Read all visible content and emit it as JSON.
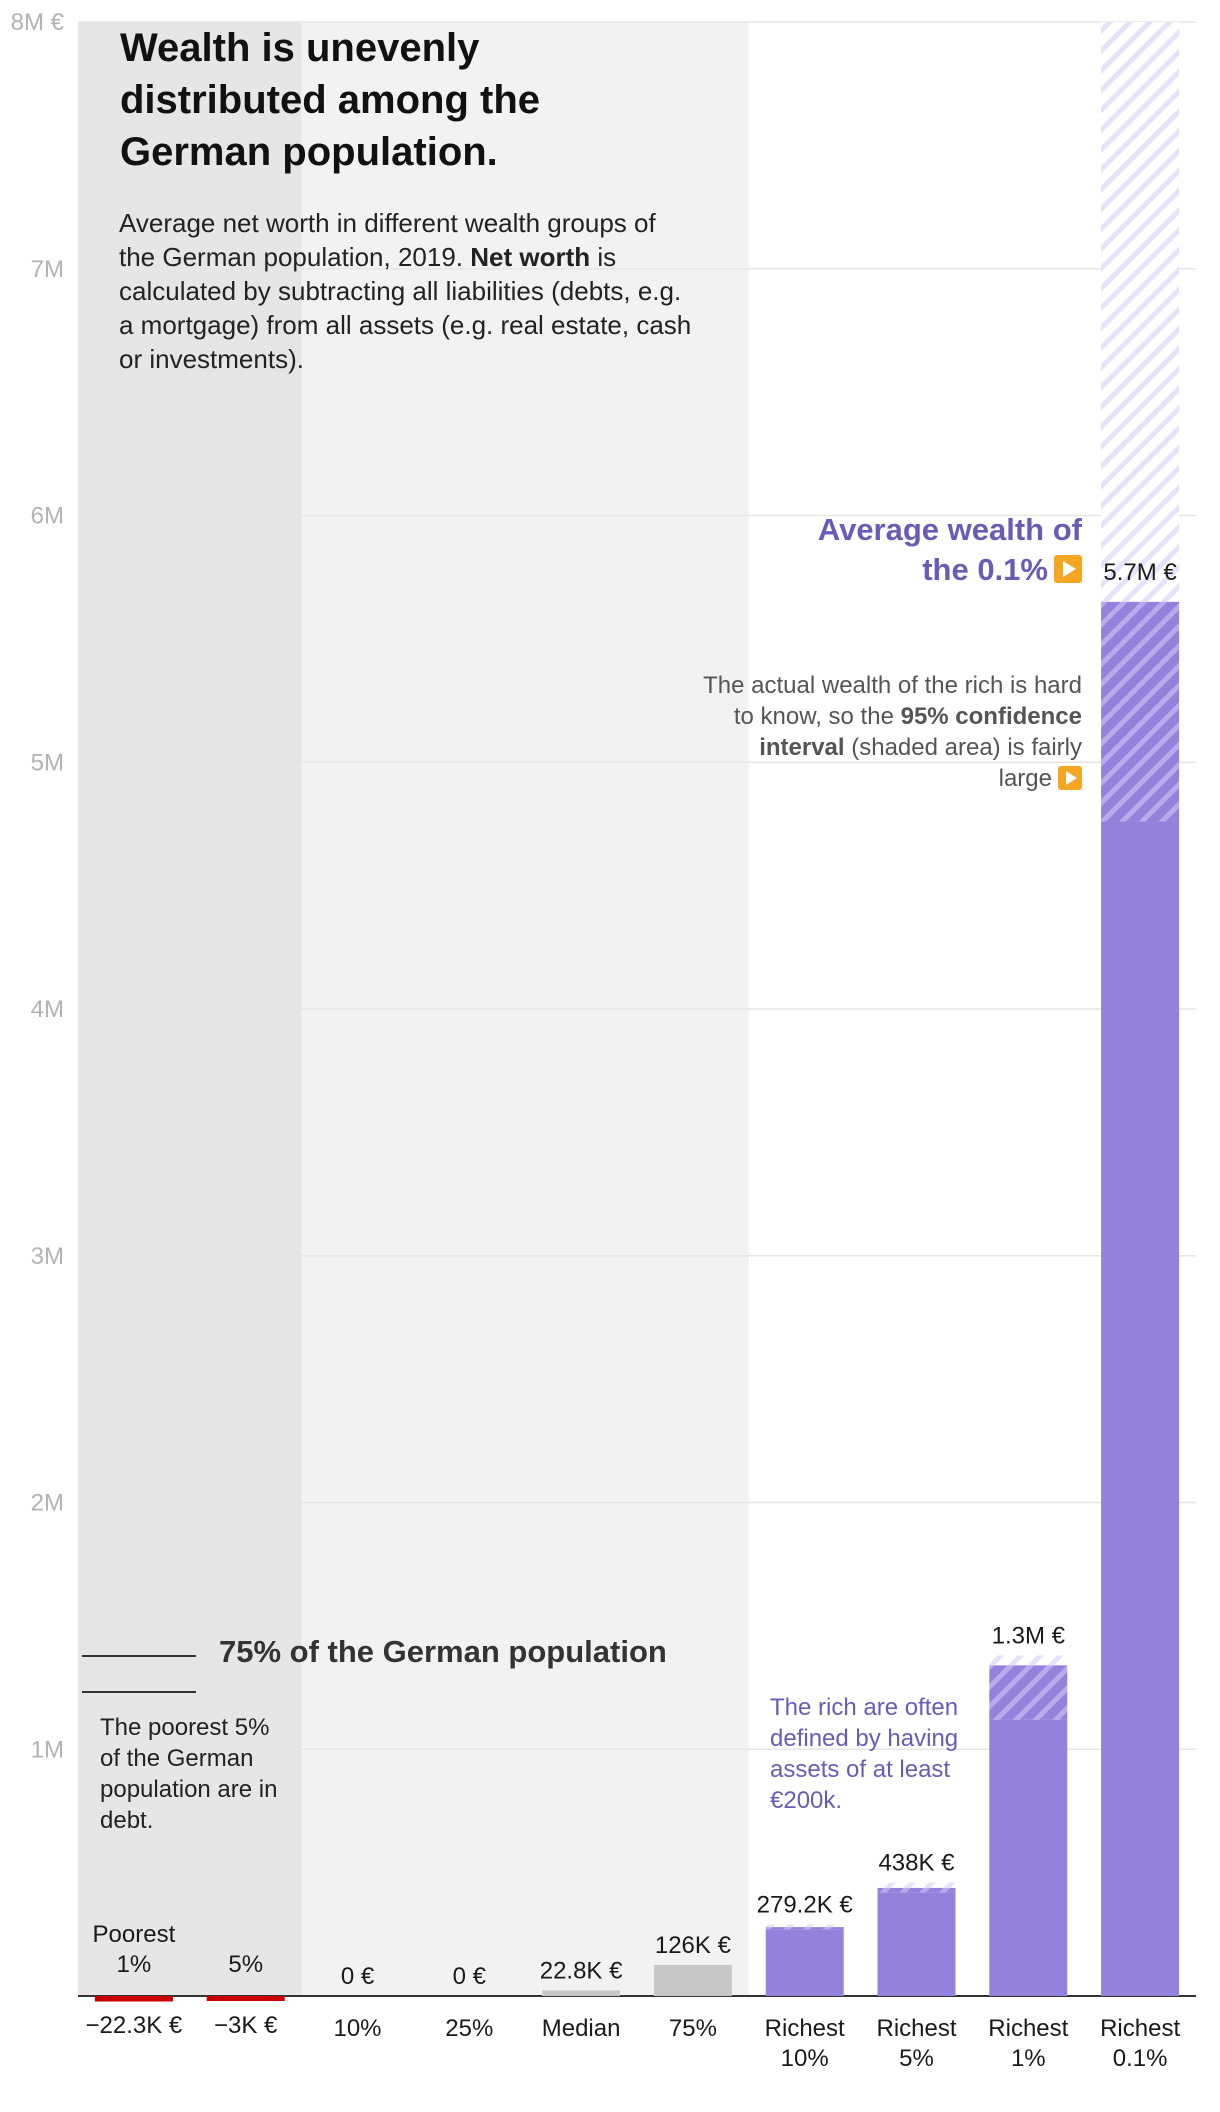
{
  "title": "Wealth is unevenly distributed among the German population.",
  "subtitle": {
    "part1": "Average net worth in different wealth groups of the German population, 2019. ",
    "bold": "Net worth",
    "part2": " is calculated by subtracting all liabilities (debts, e.g. a mortgage) from all assets (e.g. real estate, cash or investments)."
  },
  "annotations": {
    "rich01": "Average wealth of the 0.1%",
    "ci": {
      "part1": "The actual wealth of the rich is hard to know, so the ",
      "bold": "95% confidence interval",
      "part2": " (shaded area) is fairly large"
    },
    "rich_definition": "The rich are often defined by having assets of at least €200k.",
    "poorest": "The poorest 5% of the German population are in debt.",
    "pop75": "75% of the German population"
  },
  "colors": {
    "negative": "#cc0000",
    "neutral": "#c8c8c8",
    "rich": "#9381dc",
    "rich_ci": "#e8e1fa",
    "band_poor": "#e6e6e6",
    "band_75": "#f2f2f2",
    "grid": "#e6e6e6",
    "annotation_purple": "#6b5bb7",
    "play_icon": "#f5a623"
  },
  "chart_data": {
    "type": "bar",
    "ylim": [
      -100000,
      8000000
    ],
    "yticks": [
      {
        "value": 1000000,
        "label": "1M"
      },
      {
        "value": 2000000,
        "label": "2M"
      },
      {
        "value": 3000000,
        "label": "3M"
      },
      {
        "value": 4000000,
        "label": "4M"
      },
      {
        "value": 5000000,
        "label": "5M"
      },
      {
        "value": 6000000,
        "label": "6M"
      },
      {
        "value": 7000000,
        "label": "7M"
      },
      {
        "value": 8000000,
        "label": "8M €"
      }
    ],
    "grid": true,
    "categories": [
      "Poorest 1%",
      "5%",
      "10%",
      "25%",
      "Median",
      "75%",
      "Richest 10%",
      "Richest 5%",
      "Richest 1%",
      "Richest 0.1%"
    ],
    "bars": [
      {
        "category": "Poorest 1%",
        "label_lines": [
          "Poorest",
          "1%"
        ],
        "value": -22300,
        "value_label": "−22.3K €",
        "group": "negative"
      },
      {
        "category": "5%",
        "label_lines": [
          "5%"
        ],
        "value": -3000,
        "value_label": "−3K €",
        "group": "negative"
      },
      {
        "category": "10%",
        "label_lines": [
          "10%"
        ],
        "value": 0,
        "value_label": "0 €",
        "group": "neutral"
      },
      {
        "category": "25%",
        "label_lines": [
          "25%"
        ],
        "value": 0,
        "value_label": "0 €",
        "group": "neutral"
      },
      {
        "category": "Median",
        "label_lines": [
          "Median"
        ],
        "value": 22800,
        "value_label": "22.8K €",
        "group": "neutral"
      },
      {
        "category": "75%",
        "label_lines": [
          "75%"
        ],
        "value": 126000,
        "value_label": "126K €",
        "group": "neutral"
      },
      {
        "category": "Richest 10%",
        "label_lines": [
          "Richest",
          "10%"
        ],
        "value": 279200,
        "value_label": "279.2K €",
        "group": "rich",
        "ci": [
          270000,
          290000
        ]
      },
      {
        "category": "Richest 5%",
        "label_lines": [
          "Richest",
          "5%"
        ],
        "value": 438000,
        "value_label": "438K €",
        "group": "rich",
        "ci": [
          420000,
          460000
        ]
      },
      {
        "category": "Richest 1%",
        "label_lines": [
          "Richest",
          "1%"
        ],
        "value": 1340000,
        "value_label": "1.3M €",
        "group": "rich",
        "ci": [
          1120000,
          1380000
        ]
      },
      {
        "category": "Richest 0.1%",
        "label_lines": [
          "Richest",
          "0.1%"
        ],
        "value": 5650000,
        "value_label": "5.7M €",
        "group": "rich",
        "ci": [
          4760000,
          8000000
        ]
      }
    ]
  }
}
